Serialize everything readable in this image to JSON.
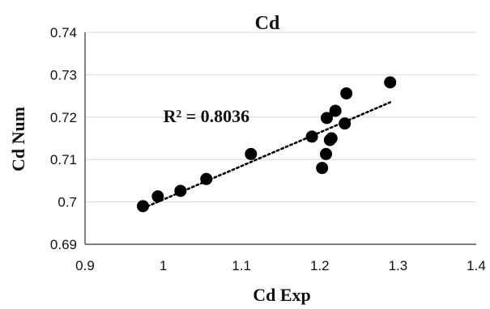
{
  "chart_data": {
    "type": "scatter",
    "title": "Cd",
    "xlabel": "Cd Exp",
    "ylabel": "Cd Num",
    "xlim": [
      0.9,
      1.4
    ],
    "ylim": [
      0.69,
      0.74
    ],
    "xticks": [
      0.9,
      1,
      1.1,
      1.2,
      1.3,
      1.4
    ],
    "xtick_labels": [
      "0.9",
      "1",
      "1.1",
      "1.2",
      "1.3",
      "1.4"
    ],
    "yticks": [
      0.69,
      0.7,
      0.71,
      0.72,
      0.73,
      0.74
    ],
    "ytick_labels": [
      "0.69",
      "0.7",
      "0.71",
      "0.72",
      "0.73",
      "0.74"
    ],
    "grid": "horizontal",
    "series": [
      {
        "points": [
          {
            "x": 0.974,
            "y": 0.699
          },
          {
            "x": 0.993,
            "y": 0.7013
          },
          {
            "x": 1.022,
            "y": 0.7026
          },
          {
            "x": 1.055,
            "y": 0.7054
          },
          {
            "x": 1.112,
            "y": 0.7113
          },
          {
            "x": 1.19,
            "y": 0.7154
          },
          {
            "x": 1.203,
            "y": 0.708
          },
          {
            "x": 1.208,
            "y": 0.7113
          },
          {
            "x": 1.209,
            "y": 0.7198
          },
          {
            "x": 1.213,
            "y": 0.7146
          },
          {
            "x": 1.215,
            "y": 0.715
          },
          {
            "x": 1.22,
            "y": 0.7215
          },
          {
            "x": 1.232,
            "y": 0.7185
          },
          {
            "x": 1.234,
            "y": 0.7256
          },
          {
            "x": 1.29,
            "y": 0.7282
          }
        ],
        "color": "#000000"
      }
    ],
    "trendline": {
      "style": "dotted",
      "x": [
        0.974,
        1.29
      ],
      "y": [
        0.6985,
        0.7235
      ]
    },
    "annotations": [
      {
        "text": "R² = 0.8036",
        "x": 1.0,
        "y": 0.7188
      }
    ]
  }
}
